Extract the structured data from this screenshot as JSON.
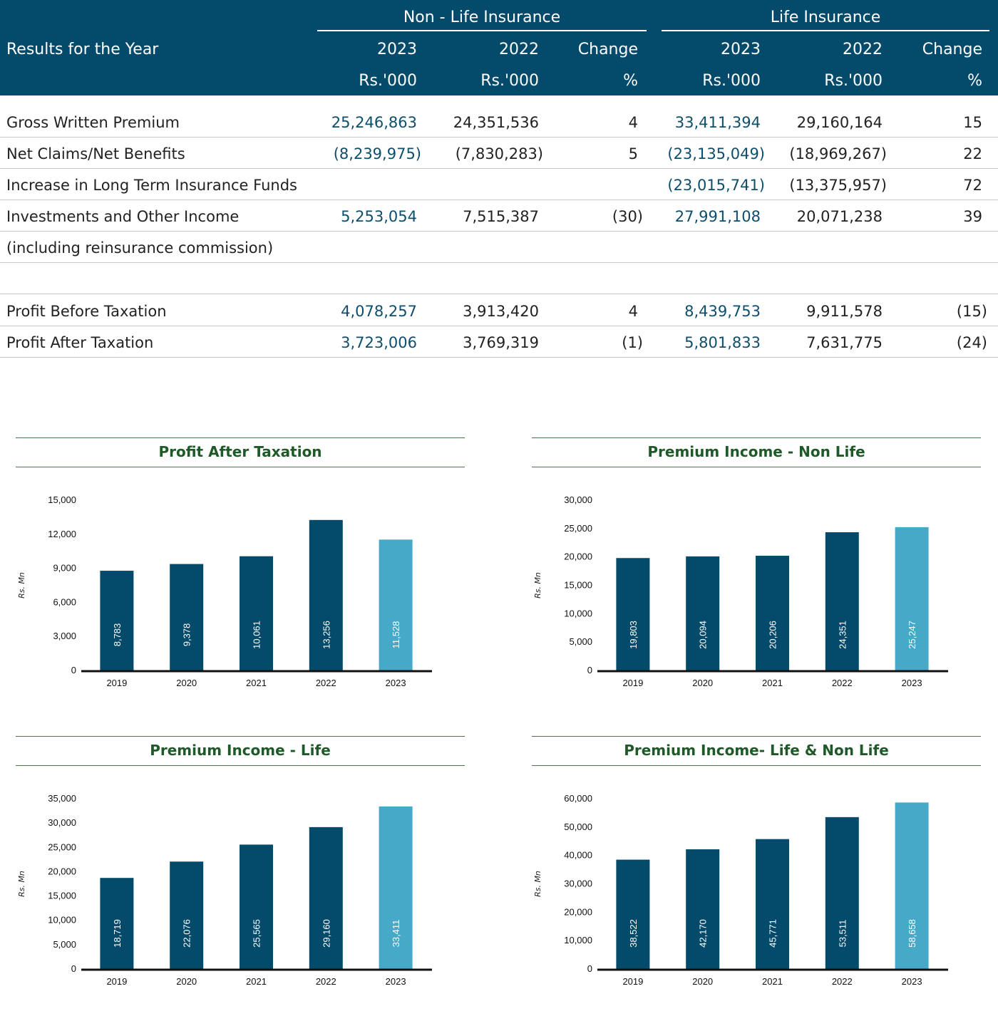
{
  "table": {
    "title": "Results for the Year",
    "groups": [
      "Non - Life Insurance",
      "Life Insurance"
    ],
    "columns": [
      {
        "year": "2023",
        "unit": "Rs.'000"
      },
      {
        "year": "2022",
        "unit": "Rs.'000"
      },
      {
        "year": "Change",
        "unit": "%"
      },
      {
        "year": "2023",
        "unit": "Rs.'000"
      },
      {
        "year": "2022",
        "unit": "Rs.'000"
      },
      {
        "year": "Change",
        "unit": "%"
      }
    ],
    "rows": [
      {
        "label": "Gross Written Premium",
        "values": [
          "25,246,863",
          "24,351,536",
          "4",
          "33,411,394",
          "29,160,164",
          "15"
        ]
      },
      {
        "label": "Net Claims/Net Benefits",
        "values": [
          "(8,239,975)",
          "(7,830,283)",
          "5",
          "(23,135,049)",
          "(18,969,267)",
          "22"
        ]
      },
      {
        "label": "Increase in Long Term Insurance Funds",
        "values": [
          "",
          "",
          "",
          "(23,015,741)",
          "(13,375,957)",
          "72"
        ]
      },
      {
        "label": "Investments and Other Income",
        "values": [
          "5,253,054",
          "7,515,387",
          "(30)",
          "27,991,108",
          "20,071,238",
          "39"
        ]
      },
      {
        "label": "(including reinsurance commission)",
        "values": [
          "",
          "",
          "",
          "",
          "",
          ""
        ]
      },
      {
        "label": "",
        "values": [
          "",
          "",
          "",
          "",
          "",
          ""
        ]
      },
      {
        "label": "Profit Before Taxation",
        "values": [
          "4,078,257",
          "3,913,420",
          "4",
          "8,439,753",
          "9,911,578",
          "(15)"
        ]
      },
      {
        "label": "Profit After Taxation",
        "values": [
          "3,723,006",
          "3,769,319",
          "(1)",
          "5,801,833",
          "7,631,775",
          "(24)"
        ]
      }
    ]
  },
  "colors": {
    "header_bg": "#034a6b",
    "highlight_text": "#0d4e6d",
    "bar": "#034a6b",
    "bar_latest": "#47a9c8",
    "chart_title": "#1e5a27"
  },
  "chart_data": [
    {
      "type": "bar",
      "title": "Profit After Taxation",
      "ylabel": "Rs. Mn",
      "xlabel": "",
      "categories": [
        "2019",
        "2020",
        "2021",
        "2022",
        "2023"
      ],
      "values": [
        8783,
        9378,
        10061,
        13256,
        11528
      ],
      "value_labels": [
        "8,783",
        "9,378",
        "10,061",
        "13,256",
        "11,528"
      ],
      "ylim": [
        0,
        15000
      ],
      "yticks": [
        0,
        3000,
        6000,
        9000,
        12000,
        15000
      ],
      "ytick_labels": [
        "0",
        "3,000",
        "6,000",
        "9,000",
        "12,000",
        "15,000"
      ],
      "grid": false
    },
    {
      "type": "bar",
      "title": "Premium Income - Non Life",
      "ylabel": "Rs. Mn",
      "xlabel": "",
      "categories": [
        "2019",
        "2020",
        "2021",
        "2022",
        "2023"
      ],
      "values": [
        19803,
        20094,
        20206,
        24351,
        25247
      ],
      "value_labels": [
        "19,803",
        "20,094",
        "20,206",
        "24,351",
        "25,247"
      ],
      "ylim": [
        0,
        30000
      ],
      "yticks": [
        0,
        5000,
        10000,
        15000,
        20000,
        25000,
        30000
      ],
      "ytick_labels": [
        "0",
        "5,000",
        "10,000",
        "15,000",
        "20,000",
        "25,000",
        "30,000"
      ],
      "grid": false
    },
    {
      "type": "bar",
      "title": "Premium Income - Life",
      "ylabel": "Rs. Mn",
      "xlabel": "",
      "categories": [
        "2019",
        "2020",
        "2021",
        "2022",
        "2023"
      ],
      "values": [
        18719,
        22076,
        25565,
        29160,
        33411
      ],
      "value_labels": [
        "18,719",
        "22,076",
        "25,565",
        "29,160",
        "33,411"
      ],
      "ylim": [
        0,
        35000
      ],
      "yticks": [
        0,
        5000,
        10000,
        15000,
        20000,
        25000,
        30000,
        35000
      ],
      "ytick_labels": [
        "0",
        "5,000",
        "10,000",
        "15,000",
        "20,000",
        "25,000",
        "30,000",
        "35,000"
      ],
      "grid": false
    },
    {
      "type": "bar",
      "title": "Premium Income- Life & Non Life",
      "ylabel": "Rs. Mn",
      "xlabel": "",
      "categories": [
        "2019",
        "2020",
        "2021",
        "2022",
        "2023"
      ],
      "values": [
        38522,
        42170,
        45771,
        53511,
        58658
      ],
      "value_labels": [
        "38,522",
        "42,170",
        "45,771",
        "53,511",
        "58,658"
      ],
      "ylim": [
        0,
        60000
      ],
      "yticks": [
        0,
        10000,
        20000,
        30000,
        40000,
        50000,
        60000
      ],
      "ytick_labels": [
        "0",
        "10,000",
        "20,000",
        "30,000",
        "40,000",
        "50,000",
        "60,000"
      ],
      "grid": false
    }
  ]
}
